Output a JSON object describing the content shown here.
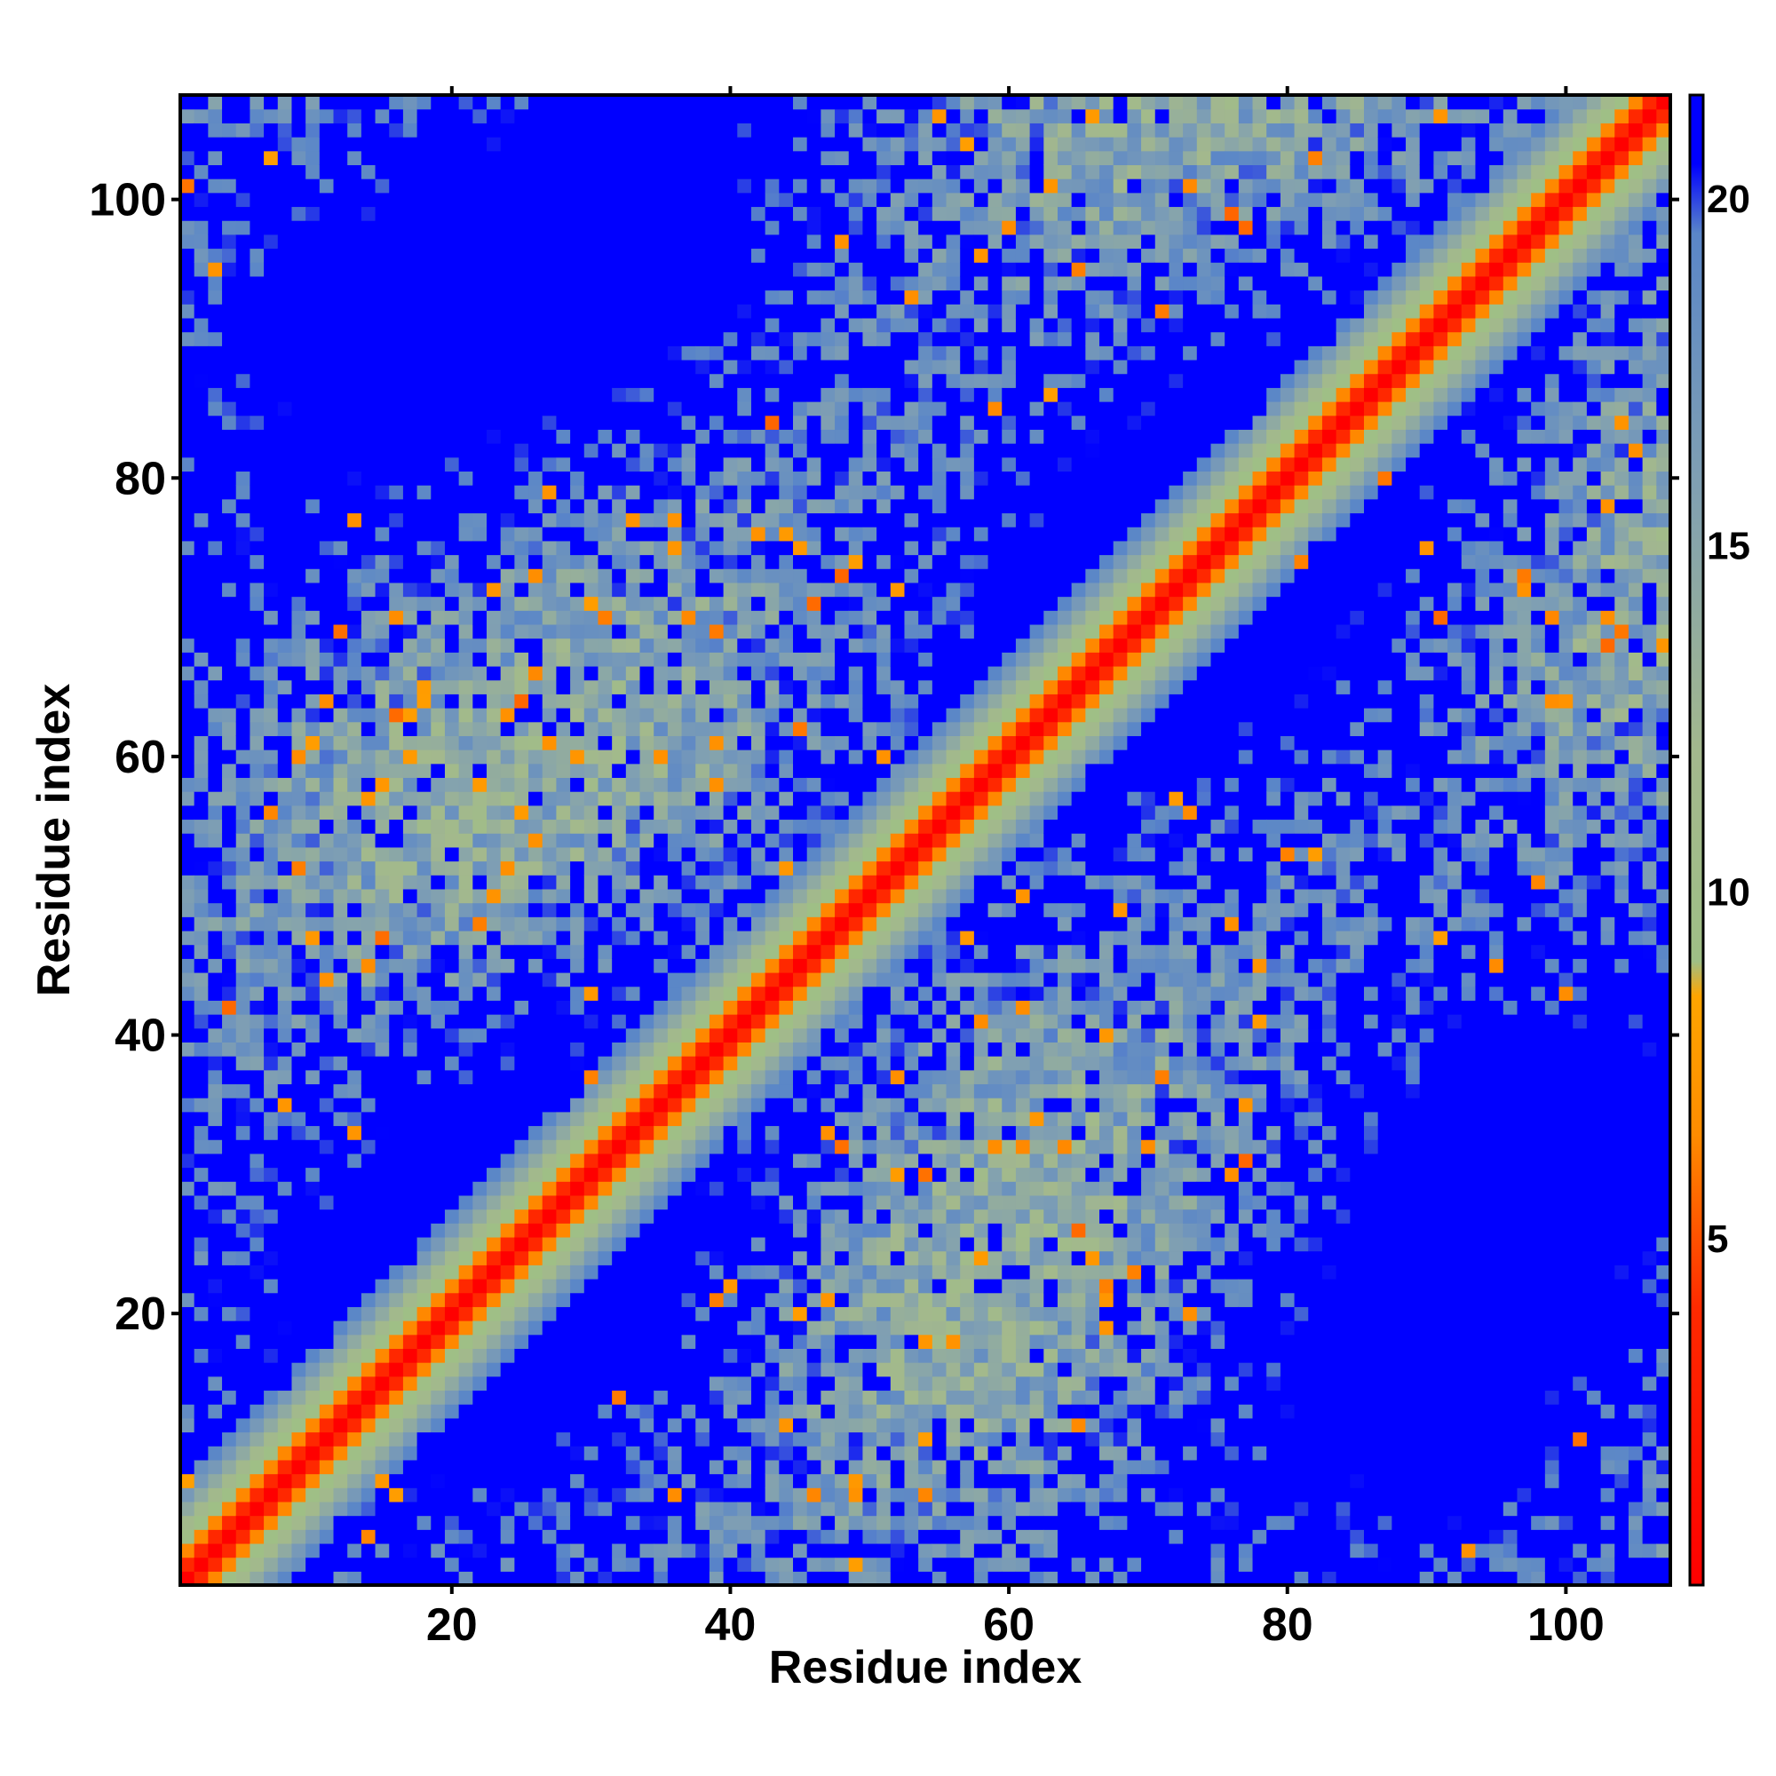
{
  "chart_data": {
    "type": "heatmap",
    "title": "",
    "xlabel": "Residue index",
    "ylabel": "Residue index",
    "n_residues": 107,
    "xlim": [
      0.5,
      107.5
    ],
    "ylim": [
      0.5,
      107.5
    ],
    "x_ticks": [
      20,
      40,
      60,
      80,
      100
    ],
    "y_ticks": [
      20,
      40,
      60,
      80,
      100
    ],
    "colorbar": {
      "ticks": [
        5,
        10,
        15,
        20
      ],
      "range": [
        0,
        21.5
      ],
      "stops": [
        {
          "value": 0,
          "color": "#ff0000"
        },
        {
          "value": 4,
          "color": "#ff2a00"
        },
        {
          "value": 6.5,
          "color": "#ff8c00"
        },
        {
          "value": 8.5,
          "color": "#ffa500"
        },
        {
          "value": 9,
          "color": "#9fbf86"
        },
        {
          "value": 12,
          "color": "#a3b88d"
        },
        {
          "value": 16,
          "color": "#7f9fb3"
        },
        {
          "value": 19.5,
          "color": "#5a86c8"
        },
        {
          "value": 20.5,
          "color": "#0000ff"
        },
        {
          "value": 21.5,
          "color": "#0000ff"
        }
      ]
    },
    "description_of_values": "Pairwise residue distance map: ~0 on diagonal (red), increasing away from diagonal; values above 20 saturate (blue). Secondary contact bands form a lattice pattern.",
    "colors": {
      "near": "#ff0000",
      "mid": "#ffa500",
      "far": "#9fbf86",
      "saturated": "#0000ff"
    }
  },
  "labels": {
    "x_axis": "Residue index",
    "y_axis": "Residue index",
    "x_tick_labels": [
      "20",
      "40",
      "60",
      "80",
      "100"
    ],
    "y_tick_labels": [
      "20",
      "40",
      "60",
      "80",
      "100"
    ],
    "colorbar_tick_labels": [
      "5",
      "10",
      "15",
      "20"
    ]
  }
}
